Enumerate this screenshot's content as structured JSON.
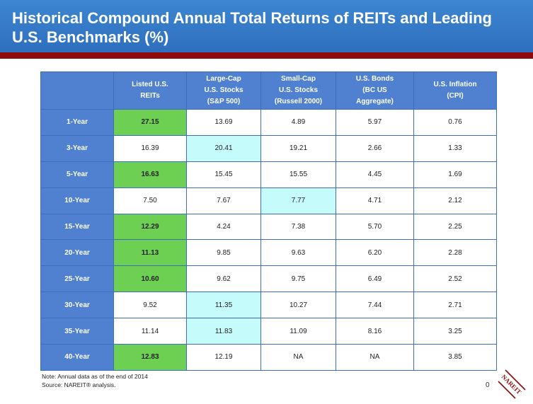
{
  "title": "Historical Compound Annual Total Returns of REITs and Leading U.S. Benchmarks (%)",
  "colors": {
    "header_blue": "#3d86d2",
    "table_blue": "#4f81d0",
    "red_bar": "#8e0b0b",
    "highlight_green": "#6ed052",
    "highlight_cyan": "#c6fbfb"
  },
  "chart_data": {
    "type": "table",
    "columns": [
      {
        "lines": [
          "Listed U.S.",
          "REITs"
        ]
      },
      {
        "lines": [
          "Large-Cap",
          "U.S. Stocks",
          "(S&P 500)"
        ]
      },
      {
        "lines": [
          "Small-Cap",
          "U.S. Stocks",
          "(Russell 2000)"
        ]
      },
      {
        "lines": [
          "U.S. Bonds",
          "(BC US",
          "Aggregate)"
        ]
      },
      {
        "lines": [
          "U.S. Inflation",
          "(CPI)"
        ]
      }
    ],
    "rows": [
      {
        "label": "1-Year",
        "values": [
          "27.15",
          "13.69",
          "4.89",
          "5.97",
          "0.76"
        ],
        "highlight": [
          "green",
          "",
          "",
          "",
          ""
        ]
      },
      {
        "label": "3-Year",
        "values": [
          "16.39",
          "20.41",
          "19.21",
          "2.66",
          "1.33"
        ],
        "highlight": [
          "",
          "cyan",
          "",
          "",
          ""
        ]
      },
      {
        "label": "5-Year",
        "values": [
          "16.63",
          "15.45",
          "15.55",
          "4.45",
          "1.69"
        ],
        "highlight": [
          "green",
          "",
          "",
          "",
          ""
        ]
      },
      {
        "label": "10-Year",
        "values": [
          "7.50",
          "7.67",
          "7.77",
          "4.71",
          "2.12"
        ],
        "highlight": [
          "",
          "",
          "cyan",
          "",
          ""
        ]
      },
      {
        "label": "15-Year",
        "values": [
          "12.29",
          "4.24",
          "7.38",
          "5.70",
          "2.25"
        ],
        "highlight": [
          "green",
          "",
          "",
          "",
          ""
        ]
      },
      {
        "label": "20-Year",
        "values": [
          "11.13",
          "9.85",
          "9.63",
          "6.20",
          "2.28"
        ],
        "highlight": [
          "green",
          "",
          "",
          "",
          ""
        ]
      },
      {
        "label": "25-Year",
        "values": [
          "10.60",
          "9.62",
          "9.75",
          "6.49",
          "2.52"
        ],
        "highlight": [
          "green",
          "",
          "",
          "",
          ""
        ]
      },
      {
        "label": "30-Year",
        "values": [
          "9.52",
          "11.35",
          "10.27",
          "7.44",
          "2.71"
        ],
        "highlight": [
          "",
          "cyan",
          "",
          "",
          ""
        ]
      },
      {
        "label": "35-Year",
        "values": [
          "11.14",
          "11.83",
          "11.09",
          "8.16",
          "3.25"
        ],
        "highlight": [
          "",
          "cyan",
          "",
          "",
          ""
        ]
      },
      {
        "label": "40-Year",
        "values": [
          "12.83",
          "12.19",
          "NA",
          "NA",
          "3.85"
        ],
        "highlight": [
          "green",
          "",
          "",
          "",
          ""
        ]
      }
    ]
  },
  "notes": {
    "note": "Note: Annual data as of the end of 2014",
    "source": "Source: NAREIT® analysis."
  },
  "page_number": "0",
  "logo": {
    "text": "NAREIT",
    "icon": "nareit-logo"
  }
}
